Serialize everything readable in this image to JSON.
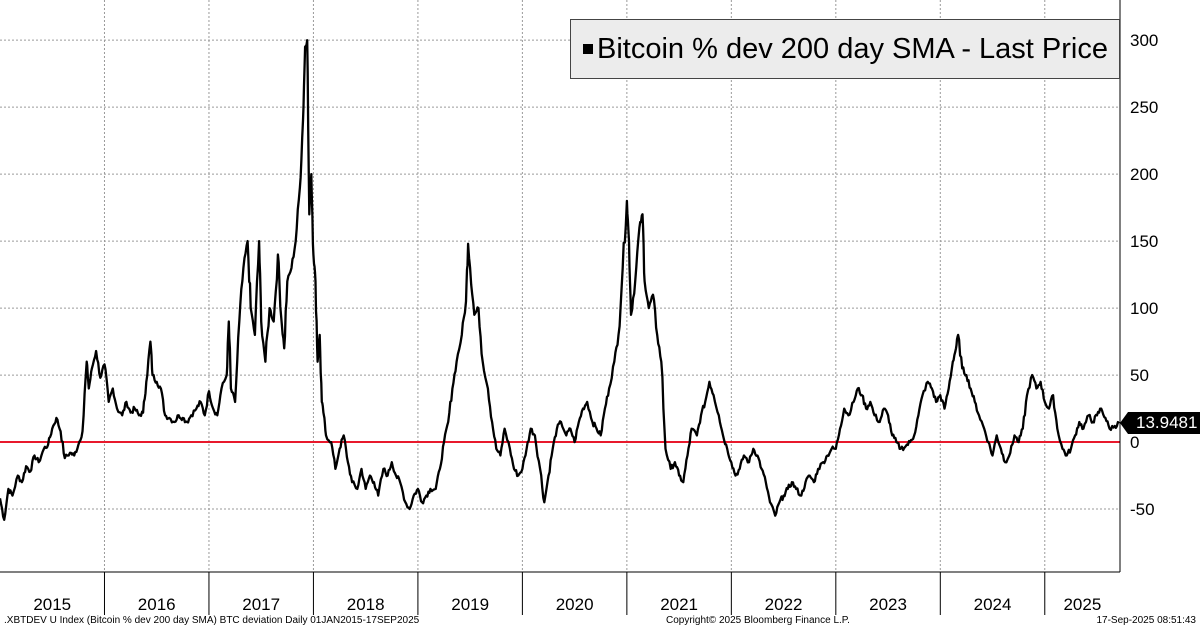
{
  "chart_data": {
    "type": "line",
    "title": "Bitcoin % dev 200 day SMA - Last Price",
    "series_name": "Bitcoin % dev 200 day SMA - Last Price",
    "xlabel": "",
    "ylabel": "",
    "x_categories": [
      "2015",
      "2016",
      "2017",
      "2018",
      "2019",
      "2020",
      "2021",
      "2022",
      "2023",
      "2024",
      "2025"
    ],
    "xlim": [
      2015.0,
      2025.72
    ],
    "ylim": [
      -97,
      330
    ],
    "y_ticks": [
      -50,
      0,
      50,
      100,
      150,
      200,
      250,
      300
    ],
    "reference_line": {
      "value": 0,
      "color": "#e8192c"
    },
    "line_color": "#000000",
    "last_value": "13.9481",
    "grid": true,
    "legend_position": "top-right",
    "points": [
      [
        2015.0,
        -42
      ],
      [
        2015.04,
        -58
      ],
      [
        2015.08,
        -35
      ],
      [
        2015.12,
        -40
      ],
      [
        2015.17,
        -25
      ],
      [
        2015.21,
        -30
      ],
      [
        2015.25,
        -18
      ],
      [
        2015.29,
        -22
      ],
      [
        2015.33,
        -10
      ],
      [
        2015.37,
        -15
      ],
      [
        2015.42,
        -5
      ],
      [
        2015.46,
        -2
      ],
      [
        2015.5,
        10
      ],
      [
        2015.54,
        18
      ],
      [
        2015.58,
        8
      ],
      [
        2015.62,
        -12
      ],
      [
        2015.67,
        -8
      ],
      [
        2015.71,
        -10
      ],
      [
        2015.75,
        -2
      ],
      [
        2015.79,
        8
      ],
      [
        2015.83,
        60
      ],
      [
        2015.85,
        40
      ],
      [
        2015.88,
        55
      ],
      [
        2015.92,
        68
      ],
      [
        2015.96,
        48
      ],
      [
        2016.0,
        58
      ],
      [
        2016.04,
        30
      ],
      [
        2016.08,
        40
      ],
      [
        2016.12,
        25
      ],
      [
        2016.17,
        20
      ],
      [
        2016.21,
        30
      ],
      [
        2016.25,
        22
      ],
      [
        2016.29,
        25
      ],
      [
        2016.33,
        20
      ],
      [
        2016.37,
        22
      ],
      [
        2016.4,
        45
      ],
      [
        2016.44,
        75
      ],
      [
        2016.46,
        50
      ],
      [
        2016.5,
        45
      ],
      [
        2016.54,
        40
      ],
      [
        2016.58,
        20
      ],
      [
        2016.62,
        18
      ],
      [
        2016.67,
        15
      ],
      [
        2016.71,
        20
      ],
      [
        2016.75,
        18
      ],
      [
        2016.79,
        15
      ],
      [
        2016.83,
        20
      ],
      [
        2016.88,
        25
      ],
      [
        2016.92,
        30
      ],
      [
        2016.96,
        20
      ],
      [
        2017.0,
        38
      ],
      [
        2017.04,
        25
      ],
      [
        2017.08,
        20
      ],
      [
        2017.12,
        40
      ],
      [
        2017.17,
        50
      ],
      [
        2017.19,
        90
      ],
      [
        2017.21,
        40
      ],
      [
        2017.25,
        30
      ],
      [
        2017.29,
        90
      ],
      [
        2017.33,
        130
      ],
      [
        2017.37,
        150
      ],
      [
        2017.4,
        100
      ],
      [
        2017.44,
        80
      ],
      [
        2017.48,
        150
      ],
      [
        2017.5,
        90
      ],
      [
        2017.54,
        60
      ],
      [
        2017.58,
        100
      ],
      [
        2017.62,
        90
      ],
      [
        2017.66,
        140
      ],
      [
        2017.69,
        95
      ],
      [
        2017.72,
        70
      ],
      [
        2017.75,
        120
      ],
      [
        2017.79,
        130
      ],
      [
        2017.83,
        150
      ],
      [
        2017.87,
        190
      ],
      [
        2017.9,
        240
      ],
      [
        2017.92,
        295
      ],
      [
        2017.94,
        300
      ],
      [
        2017.96,
        170
      ],
      [
        2017.98,
        200
      ],
      [
        2018.0,
        140
      ],
      [
        2018.02,
        120
      ],
      [
        2018.04,
        60
      ],
      [
        2018.06,
        80
      ],
      [
        2018.08,
        30
      ],
      [
        2018.1,
        20
      ],
      [
        2018.12,
        5
      ],
      [
        2018.17,
        0
      ],
      [
        2018.21,
        -20
      ],
      [
        2018.25,
        -5
      ],
      [
        2018.29,
        5
      ],
      [
        2018.33,
        -15
      ],
      [
        2018.37,
        -30
      ],
      [
        2018.42,
        -35
      ],
      [
        2018.46,
        -20
      ],
      [
        2018.5,
        -35
      ],
      [
        2018.54,
        -25
      ],
      [
        2018.58,
        -30
      ],
      [
        2018.62,
        -40
      ],
      [
        2018.67,
        -20
      ],
      [
        2018.71,
        -25
      ],
      [
        2018.75,
        -15
      ],
      [
        2018.79,
        -25
      ],
      [
        2018.83,
        -30
      ],
      [
        2018.88,
        -45
      ],
      [
        2018.92,
        -50
      ],
      [
        2018.96,
        -40
      ],
      [
        2019.0,
        -35
      ],
      [
        2019.04,
        -45
      ],
      [
        2019.08,
        -40
      ],
      [
        2019.12,
        -35
      ],
      [
        2019.17,
        -35
      ],
      [
        2019.21,
        -20
      ],
      [
        2019.25,
        0
      ],
      [
        2019.29,
        15
      ],
      [
        2019.33,
        40
      ],
      [
        2019.37,
        60
      ],
      [
        2019.42,
        80
      ],
      [
        2019.46,
        105
      ],
      [
        2019.48,
        148
      ],
      [
        2019.5,
        130
      ],
      [
        2019.54,
        95
      ],
      [
        2019.58,
        100
      ],
      [
        2019.62,
        60
      ],
      [
        2019.67,
        40
      ],
      [
        2019.71,
        15
      ],
      [
        2019.75,
        -5
      ],
      [
        2019.79,
        -10
      ],
      [
        2019.83,
        10
      ],
      [
        2019.88,
        -5
      ],
      [
        2019.92,
        -20
      ],
      [
        2019.96,
        -25
      ],
      [
        2020.0,
        -20
      ],
      [
        2020.04,
        -5
      ],
      [
        2020.08,
        10
      ],
      [
        2020.12,
        5
      ],
      [
        2020.17,
        -20
      ],
      [
        2020.21,
        -45
      ],
      [
        2020.25,
        -25
      ],
      [
        2020.29,
        -5
      ],
      [
        2020.33,
        10
      ],
      [
        2020.37,
        15
      ],
      [
        2020.42,
        5
      ],
      [
        2020.46,
        10
      ],
      [
        2020.5,
        0
      ],
      [
        2020.54,
        15
      ],
      [
        2020.58,
        25
      ],
      [
        2020.62,
        30
      ],
      [
        2020.67,
        15
      ],
      [
        2020.71,
        10
      ],
      [
        2020.75,
        5
      ],
      [
        2020.79,
        25
      ],
      [
        2020.83,
        40
      ],
      [
        2020.88,
        60
      ],
      [
        2020.92,
        80
      ],
      [
        2020.96,
        130
      ],
      [
        2021.0,
        180
      ],
      [
        2021.02,
        150
      ],
      [
        2021.04,
        95
      ],
      [
        2021.08,
        120
      ],
      [
        2021.12,
        160
      ],
      [
        2021.15,
        170
      ],
      [
        2021.17,
        120
      ],
      [
        2021.21,
        100
      ],
      [
        2021.25,
        110
      ],
      [
        2021.29,
        80
      ],
      [
        2021.33,
        60
      ],
      [
        2021.37,
        -5
      ],
      [
        2021.42,
        -20
      ],
      [
        2021.46,
        -15
      ],
      [
        2021.5,
        -25
      ],
      [
        2021.54,
        -30
      ],
      [
        2021.58,
        -10
      ],
      [
        2021.62,
        10
      ],
      [
        2021.67,
        5
      ],
      [
        2021.71,
        20
      ],
      [
        2021.75,
        30
      ],
      [
        2021.79,
        45
      ],
      [
        2021.83,
        35
      ],
      [
        2021.88,
        20
      ],
      [
        2021.92,
        5
      ],
      [
        2021.96,
        -5
      ],
      [
        2022.0,
        -15
      ],
      [
        2022.04,
        -25
      ],
      [
        2022.08,
        -20
      ],
      [
        2022.12,
        -10
      ],
      [
        2022.17,
        -15
      ],
      [
        2022.21,
        -5
      ],
      [
        2022.25,
        -10
      ],
      [
        2022.29,
        -20
      ],
      [
        2022.33,
        -30
      ],
      [
        2022.37,
        -45
      ],
      [
        2022.42,
        -55
      ],
      [
        2022.46,
        -45
      ],
      [
        2022.5,
        -40
      ],
      [
        2022.54,
        -35
      ],
      [
        2022.58,
        -30
      ],
      [
        2022.62,
        -35
      ],
      [
        2022.67,
        -40
      ],
      [
        2022.71,
        -30
      ],
      [
        2022.75,
        -25
      ],
      [
        2022.79,
        -30
      ],
      [
        2022.83,
        -20
      ],
      [
        2022.88,
        -15
      ],
      [
        2022.92,
        -10
      ],
      [
        2022.96,
        -5
      ],
      [
        2023.0,
        -5
      ],
      [
        2023.04,
        10
      ],
      [
        2023.08,
        25
      ],
      [
        2023.12,
        20
      ],
      [
        2023.17,
        30
      ],
      [
        2023.21,
        40
      ],
      [
        2023.25,
        35
      ],
      [
        2023.29,
        25
      ],
      [
        2023.33,
        30
      ],
      [
        2023.37,
        20
      ],
      [
        2023.42,
        15
      ],
      [
        2023.46,
        25
      ],
      [
        2023.5,
        20
      ],
      [
        2023.54,
        5
      ],
      [
        2023.58,
        0
      ],
      [
        2023.62,
        -5
      ],
      [
        2023.67,
        -3
      ],
      [
        2023.71,
        0
      ],
      [
        2023.75,
        5
      ],
      [
        2023.79,
        20
      ],
      [
        2023.83,
        35
      ],
      [
        2023.88,
        45
      ],
      [
        2023.92,
        40
      ],
      [
        2023.96,
        30
      ],
      [
        2024.0,
        35
      ],
      [
        2024.04,
        25
      ],
      [
        2024.08,
        40
      ],
      [
        2024.12,
        60
      ],
      [
        2024.15,
        70
      ],
      [
        2024.17,
        80
      ],
      [
        2024.21,
        55
      ],
      [
        2024.25,
        50
      ],
      [
        2024.29,
        40
      ],
      [
        2024.33,
        30
      ],
      [
        2024.37,
        20
      ],
      [
        2024.42,
        10
      ],
      [
        2024.46,
        0
      ],
      [
        2024.5,
        -10
      ],
      [
        2024.54,
        5
      ],
      [
        2024.58,
        -5
      ],
      [
        2024.62,
        -15
      ],
      [
        2024.67,
        -8
      ],
      [
        2024.71,
        5
      ],
      [
        2024.75,
        0
      ],
      [
        2024.79,
        10
      ],
      [
        2024.83,
        35
      ],
      [
        2024.88,
        50
      ],
      [
        2024.92,
        40
      ],
      [
        2024.96,
        45
      ],
      [
        2025.0,
        30
      ],
      [
        2025.04,
        25
      ],
      [
        2025.08,
        35
      ],
      [
        2025.12,
        10
      ],
      [
        2025.17,
        -5
      ],
      [
        2025.21,
        -10
      ],
      [
        2025.25,
        -5
      ],
      [
        2025.29,
        5
      ],
      [
        2025.33,
        15
      ],
      [
        2025.37,
        10
      ],
      [
        2025.42,
        20
      ],
      [
        2025.46,
        15
      ],
      [
        2025.5,
        20
      ],
      [
        2025.54,
        25
      ],
      [
        2025.58,
        18
      ],
      [
        2025.62,
        10
      ],
      [
        2025.67,
        12
      ],
      [
        2025.71,
        13.9481
      ]
    ]
  },
  "footer": {
    "left": ".XBTDEV U Index (Bitcoin % dev 200 day SMA) BTC deviation  Daily 01JAN2015-17SEP2025",
    "center": "Copyright© 2025 Bloomberg Finance L.P.",
    "right": "17-Sep-2025 08:51:43"
  }
}
